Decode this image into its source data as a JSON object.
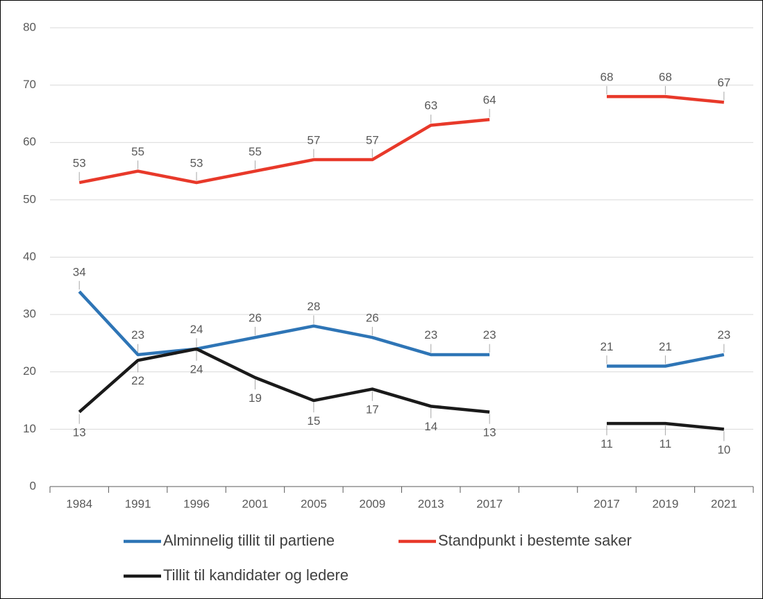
{
  "chart_data": {
    "type": "line",
    "categories": [
      "1984",
      "1991",
      "1996",
      "2001",
      "2005",
      "2009",
      "2013",
      "2017",
      null,
      "2017",
      "2019",
      "2021"
    ],
    "series": [
      {
        "name": "Alminnelig tillit til partiene",
        "color": "#2e75b6",
        "values": [
          34,
          23,
          24,
          26,
          28,
          26,
          23,
          23,
          null,
          21,
          21,
          23
        ]
      },
      {
        "name": "Standpunkt i bestemte saker",
        "color": "#e8392a",
        "values": [
          53,
          55,
          53,
          55,
          57,
          57,
          63,
          64,
          null,
          68,
          68,
          67
        ]
      },
      {
        "name": "Tillit til kandidater og ledere",
        "color": "#1a1a1a",
        "values": [
          13,
          22,
          24,
          19,
          15,
          17,
          14,
          13,
          null,
          11,
          11,
          10
        ]
      }
    ],
    "ylim": [
      0,
      80
    ],
    "yticks": [
      0,
      10,
      20,
      30,
      40,
      50,
      60,
      70,
      80
    ],
    "grid": true
  }
}
